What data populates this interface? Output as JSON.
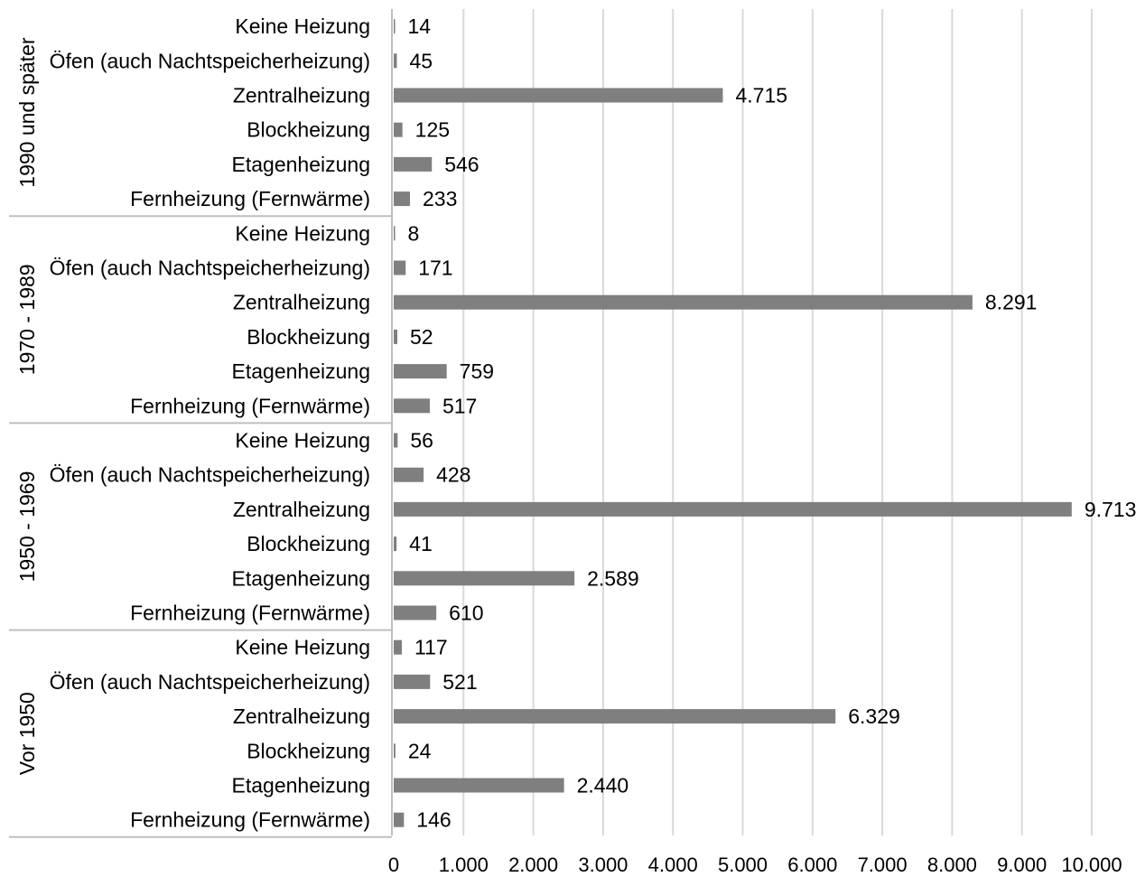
{
  "chart_data": {
    "type": "bar",
    "orientation": "horizontal",
    "categories": [
      "Keine Heizung",
      "Öfen (auch Nachtspeicherheizung)",
      "Zentralheizung",
      "Blockheizung",
      "Etagenheizung",
      "Fernheizung (Fernwärme)"
    ],
    "groups": [
      {
        "name": "1990 und später",
        "values": [
          14,
          45,
          4715,
          125,
          546,
          233
        ],
        "labels": [
          "14",
          "45",
          "4.715",
          "125",
          "546",
          "233"
        ]
      },
      {
        "name": "1970 - 1989",
        "values": [
          8,
          171,
          8291,
          52,
          759,
          517
        ],
        "labels": [
          "8",
          "171",
          "8.291",
          "52",
          "759",
          "517"
        ]
      },
      {
        "name": "1950 - 1969",
        "values": [
          56,
          428,
          9713,
          41,
          2589,
          610
        ],
        "labels": [
          "56",
          "428",
          "9.713",
          "41",
          "2.589",
          "610"
        ]
      },
      {
        "name": "Vor 1950",
        "values": [
          117,
          521,
          6329,
          24,
          2440,
          146
        ],
        "labels": [
          "117",
          "521",
          "6.329",
          "24",
          "2.440",
          "146"
        ]
      }
    ],
    "xlim": [
      0,
      10000
    ],
    "xticks": [
      0,
      1000,
      2000,
      3000,
      4000,
      5000,
      6000,
      7000,
      8000,
      9000,
      10000
    ],
    "xtick_labels": [
      "0",
      "1.000",
      "2.000",
      "3.000",
      "4.000",
      "5.000",
      "6.000",
      "7.000",
      "8.000",
      "9.000",
      "10.000"
    ],
    "grid": true,
    "bar_color": "#7f7f7f",
    "grid_color": "#d9d9d9",
    "axis_color": "#bfbfbf"
  }
}
